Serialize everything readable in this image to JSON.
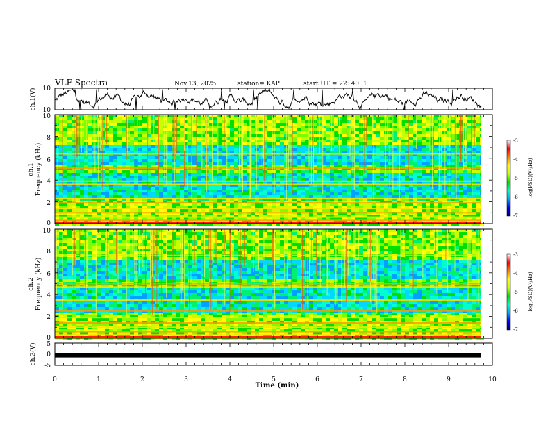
{
  "header": {
    "title": "VLF Spectra",
    "date": "Nov.13, 2025",
    "station": "station= KAP",
    "start_ut": "start  UT =   22: 40: 1"
  },
  "chart_data": {
    "type": "heatmap",
    "title": "VLF Spectra",
    "xlabel": "Time (min)",
    "xlim": [
      0,
      10
    ],
    "x_ticks": [
      "0",
      "1",
      "2",
      "3",
      "4",
      "5",
      "6",
      "7",
      "8",
      "9",
      "10"
    ],
    "panels": [
      {
        "id": "ch1_waveform",
        "type": "line",
        "ylabel": "ch.1(V)",
        "ylim": [
          -10,
          10
        ],
        "y_ticks": [
          "10",
          "-10"
        ]
      },
      {
        "id": "ch1_spectrogram",
        "type": "heatmap",
        "ylabel_line1": "ch.1",
        "ylabel_line2": "Frequency (kHz)",
        "ylim": [
          0,
          10
        ],
        "y_ticks": [
          "0",
          "2",
          "4",
          "6",
          "8",
          "10"
        ],
        "bright_bands_khz": [
          0.3,
          0.6,
          1.0,
          1.4,
          1.9,
          2.3,
          3.6,
          3.9,
          5.1,
          6.4
        ],
        "colorbar": {
          "label": "log(PSD)(V²/Hz)",
          "range": [
            -7,
            -3
          ],
          "ticks": [
            "-3",
            "-4",
            "-5",
            "-6",
            "-7"
          ]
        }
      },
      {
        "id": "ch2_spectrogram",
        "type": "heatmap",
        "ylabel_line1": "ch.2",
        "ylabel_line2": "Frequency (kHz)",
        "ylim": [
          0,
          10
        ],
        "y_ticks": [
          "0",
          "2",
          "4",
          "6",
          "8",
          "10"
        ],
        "bright_bands_khz": [
          0.3,
          0.6,
          1.0,
          1.4,
          1.9,
          2.5,
          3.5,
          4.7,
          5.0,
          7.6
        ],
        "colorbar": {
          "label": "log(PSD)(V²/Hz)",
          "range": [
            -7,
            -3
          ],
          "ticks": [
            "-3",
            "-4",
            "-5",
            "-6",
            "-7"
          ]
        }
      },
      {
        "id": "ch3",
        "type": "line",
        "ylabel": "ch.3(V)",
        "ylim": [
          -5,
          5
        ],
        "y_ticks": [
          "5",
          "0",
          "-5"
        ],
        "level_v": -0.5
      }
    ],
    "colorbar_colors": [
      "#00007a",
      "#0000ff",
      "#00a0ff",
      "#00ffc0",
      "#00e000",
      "#c8ff00",
      "#ffff00",
      "#ff8000",
      "#ff0000",
      "#ffffff"
    ]
  }
}
